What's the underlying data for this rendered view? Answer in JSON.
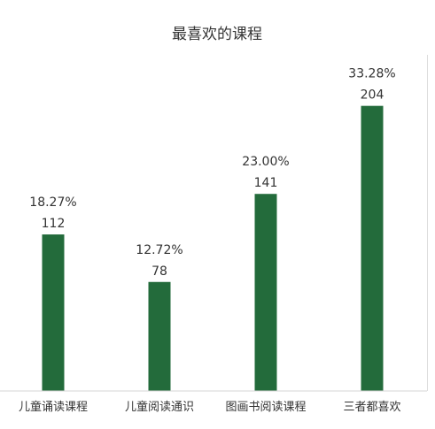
{
  "chart_data": {
    "type": "bar",
    "title": "最喜欢的课程",
    "categories": [
      "儿童诵读课程",
      "儿童阅读通识",
      "图画书阅读课程",
      "三者都喜欢"
    ],
    "values": [
      112,
      78,
      141,
      204
    ],
    "percent_labels": [
      "18.27%",
      "12.72%",
      "23.00%",
      "33.28%"
    ],
    "value_labels": [
      "112",
      "78",
      "141",
      "204"
    ],
    "ylim": [
      0,
      250
    ],
    "grid": false,
    "legend": false,
    "colors": {
      "bar": "#236b3b",
      "axis": "#d6d6d6",
      "text": "#333333"
    }
  }
}
